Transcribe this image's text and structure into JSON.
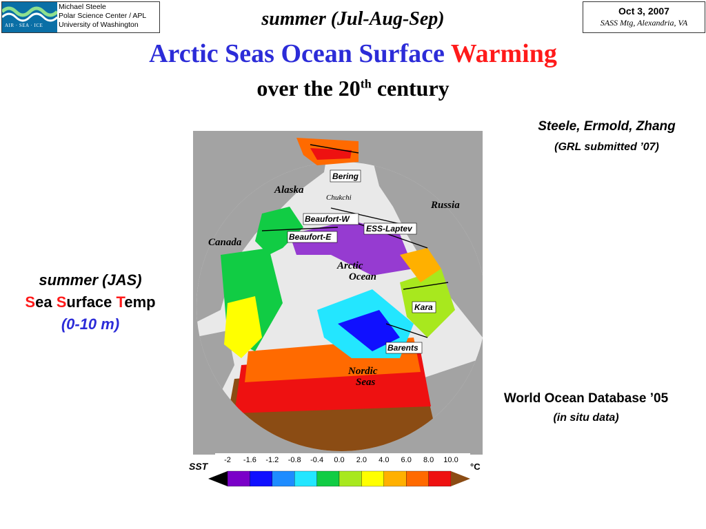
{
  "header": {
    "logo_lines": [
      "Michael Steele",
      "Polar Science Center / APL",
      "University of Washington"
    ],
    "logo_wordmark": "AIR · SEA · ICE",
    "date": "Oct 3, 2007",
    "meeting": "SASS Mtg, Alexandria, VA"
  },
  "title": {
    "season": "summer (Jul-Aug-Sep)",
    "main_blue": "Arctic Seas Ocean Surface",
    "main_red": "Warming",
    "sub_pre": "over the 20",
    "sub_sup": "th",
    "sub_post": " century"
  },
  "credits": {
    "authors": "Steele, Ermold, Zhang",
    "journal": "(GRL submitted ’07)",
    "database": "World Ocean Database ’05",
    "data_type": "(in situ data)"
  },
  "left_label": {
    "line1": "summer (JAS)",
    "s1": "S",
    "w1": "ea ",
    "s2": "S",
    "w2": "urface ",
    "s3": "T",
    "w3": "emp",
    "line3": "(0-10 m)"
  },
  "map": {
    "land_labels": [
      "Alaska",
      "Russia",
      "Canada"
    ],
    "ocean_label_1": "Arctic",
    "ocean_label_2": "Ocean",
    "seas_label_1": "Nordic",
    "seas_label_2": "Seas",
    "box_labels": [
      "Bering",
      "Chukchi",
      "Beaufort-W",
      "Beaufort-E",
      "ESS-Laptev",
      "Kara",
      "Barents"
    ]
  },
  "legend": {
    "label": "SST",
    "unit": "°C",
    "ticks": [
      "-2",
      "-1.6",
      "-1.2",
      "-0.8",
      "-0.4",
      "0.0",
      "2.0",
      "4.0",
      "6.0",
      "8.0",
      "10.0"
    ],
    "colors": [
      "#000000",
      "#7a00c8",
      "#1010ff",
      "#1e8cff",
      "#23e6ff",
      "#11cc44",
      "#a8e81e",
      "#ffff00",
      "#ffb000",
      "#ff6a00",
      "#ee1111",
      "#8b4c14"
    ]
  }
}
